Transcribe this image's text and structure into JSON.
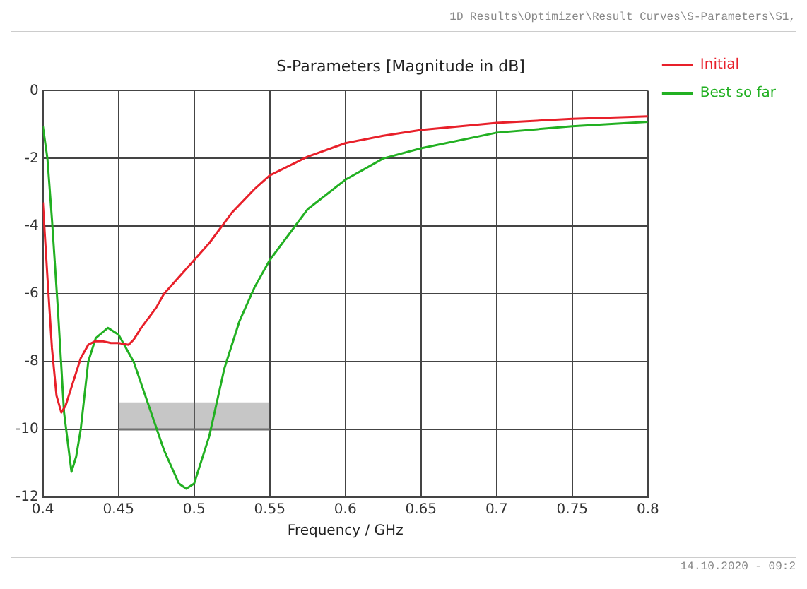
{
  "chart_data": {
    "type": "line",
    "title": "S-Parameters [Magnitude in dB]",
    "xlabel": "Frequency / GHz",
    "annotations": [
      "1D Results\\Optimizer\\Result Curves\\S-Parameters\\S1,",
      "14.10.2020 - 09:2"
    ],
    "xlim": [
      0.4,
      0.8
    ],
    "xticks": [
      0.4,
      0.45,
      0.5,
      0.55,
      0.6,
      0.65,
      0.7,
      0.75,
      0.8
    ],
    "ylim": [
      -12,
      0
    ],
    "yticks": [
      -12,
      -10,
      -8,
      -6,
      -4,
      -2,
      0
    ],
    "grid": true,
    "legend": "top right",
    "marker": "none",
    "line_style": "solid",
    "series": [
      {
        "name": "Initial",
        "color": "#e8202a",
        "x": [
          0.4,
          0.403,
          0.406,
          0.409,
          0.4122,
          0.415,
          0.42,
          0.425,
          0.43,
          0.4344,
          0.44,
          0.445,
          0.45,
          0.4567,
          0.46,
          0.465,
          0.47,
          0.475,
          0.48,
          0.49,
          0.5,
          0.51,
          0.525,
          0.54,
          0.55,
          0.575,
          0.6,
          0.625,
          0.65,
          0.7,
          0.75,
          0.8
        ],
        "values": [
          -3.3,
          -5.5,
          -7.6,
          -9.0,
          -9.5,
          -9.3,
          -8.6,
          -7.9,
          -7.5,
          -7.4,
          -7.4,
          -7.45,
          -7.45,
          -7.5,
          -7.35,
          -7.0,
          -6.7,
          -6.4,
          -6.0,
          -5.5,
          -5.0,
          -4.5,
          -3.6,
          -2.9,
          -2.5,
          -1.95,
          -1.55,
          -1.33,
          -1.16,
          -0.95,
          -0.83,
          -0.76
        ]
      },
      {
        "name": "Best so far",
        "color": "#22b022",
        "x": [
          0.4,
          0.403,
          0.406,
          0.41,
          0.414,
          0.4189,
          0.422,
          0.425,
          0.43,
          0.435,
          0.443,
          0.45,
          0.46,
          0.47,
          0.48,
          0.49,
          0.4948,
          0.5,
          0.51,
          0.52,
          0.53,
          0.54,
          0.55,
          0.575,
          0.6,
          0.625,
          0.65,
          0.7,
          0.75,
          0.8
        ],
        "values": [
          -1.05,
          -2.0,
          -3.8,
          -6.5,
          -9.5,
          -11.25,
          -10.8,
          -10.0,
          -8.0,
          -7.3,
          -7.0,
          -7.2,
          -8.0,
          -9.3,
          -10.6,
          -11.6,
          -11.75,
          -11.6,
          -10.2,
          -8.2,
          -6.8,
          -5.8,
          -5.0,
          -3.5,
          -2.63,
          -2.0,
          -1.7,
          -1.24,
          -1.05,
          -0.92
        ]
      },
      {
        "color": "#707070",
        "x": [
          0.45,
          0.55
        ],
        "values": [
          -10,
          -10
        ],
        "lower": [
          -10,
          -10
        ],
        "upper": [
          -9.2,
          -9.2
        ]
      }
    ]
  }
}
